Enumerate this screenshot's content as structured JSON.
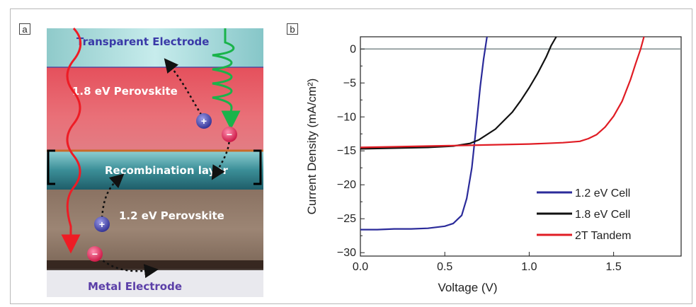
{
  "panel_a": {
    "tag": "a",
    "labels": {
      "transparent_electrode": "Transparent  Electrode",
      "top_perovskite": "1.8 eV Perovskite",
      "recombination": "Recombination layer",
      "bottom_perovskite": "1.2 eV Perovskite",
      "metal_electrode": "Metal Electrode"
    },
    "charges": {
      "hole": "+",
      "electron": "−"
    },
    "colors": {
      "top_layer": "#e25a63",
      "bottom_layer": "#8e7664",
      "electrode_top": "#9ed3d3",
      "recombination": "#2e7c86",
      "red_wave": "#ee1c25",
      "green_wave": "#19b34a",
      "hole": "#3f3fa8",
      "electron": "#e01e52"
    }
  },
  "panel_b": {
    "tag": "b"
  },
  "chart_data": {
    "type": "line",
    "xlabel": "Voltage (V)",
    "ylabel": "Current Density (mA/cm²)",
    "xlim": [
      0.0,
      1.9
    ],
    "ylim": [
      -30.5,
      1.8
    ],
    "xticks": [
      0.0,
      0.5,
      1.0,
      1.5
    ],
    "xtick_labels": [
      "0.0",
      "0.5",
      "1.0",
      "1.5"
    ],
    "yticks": [
      0,
      -5,
      -10,
      -15,
      -20,
      -25,
      -30
    ],
    "ytick_labels": [
      "0",
      "−5",
      "−10",
      "−15",
      "−20",
      "−25",
      "−30"
    ],
    "zero_line": true,
    "grid": false,
    "legend_position": "bottom-right",
    "series": [
      {
        "name": "1.2 eV Cell",
        "color": "#2b2b9a",
        "points": [
          [
            0.0,
            -26.6
          ],
          [
            0.1,
            -26.6
          ],
          [
            0.2,
            -26.5
          ],
          [
            0.3,
            -26.5
          ],
          [
            0.4,
            -26.4
          ],
          [
            0.5,
            -26.1
          ],
          [
            0.55,
            -25.7
          ],
          [
            0.6,
            -24.5
          ],
          [
            0.63,
            -22.0
          ],
          [
            0.66,
            -17.5
          ],
          [
            0.69,
            -10.5
          ],
          [
            0.71,
            -5.5
          ],
          [
            0.73,
            -1.5
          ],
          [
            0.75,
            1.8
          ]
        ]
      },
      {
        "name": "1.8 eV Cell",
        "color": "#111111",
        "points": [
          [
            0.0,
            -14.7
          ],
          [
            0.2,
            -14.6
          ],
          [
            0.4,
            -14.5
          ],
          [
            0.55,
            -14.3
          ],
          [
            0.65,
            -13.9
          ],
          [
            0.7,
            -13.4
          ],
          [
            0.8,
            -11.8
          ],
          [
            0.9,
            -9.3
          ],
          [
            0.95,
            -7.6
          ],
          [
            1.0,
            -5.7
          ],
          [
            1.05,
            -3.6
          ],
          [
            1.1,
            -1.2
          ],
          [
            1.13,
            0.5
          ],
          [
            1.16,
            1.8
          ]
        ]
      },
      {
        "name": "2T Tandem",
        "color": "#e01c24",
        "points": [
          [
            0.0,
            -14.5
          ],
          [
            0.2,
            -14.4
          ],
          [
            0.4,
            -14.3
          ],
          [
            0.6,
            -14.2
          ],
          [
            0.8,
            -14.1
          ],
          [
            1.0,
            -14.0
          ],
          [
            1.1,
            -13.9
          ],
          [
            1.2,
            -13.8
          ],
          [
            1.3,
            -13.6
          ],
          [
            1.35,
            -13.2
          ],
          [
            1.4,
            -12.6
          ],
          [
            1.45,
            -11.5
          ],
          [
            1.5,
            -9.9
          ],
          [
            1.55,
            -7.7
          ],
          [
            1.6,
            -4.5
          ],
          [
            1.63,
            -2.2
          ],
          [
            1.66,
            0.0
          ],
          [
            1.68,
            1.8
          ]
        ]
      }
    ]
  }
}
